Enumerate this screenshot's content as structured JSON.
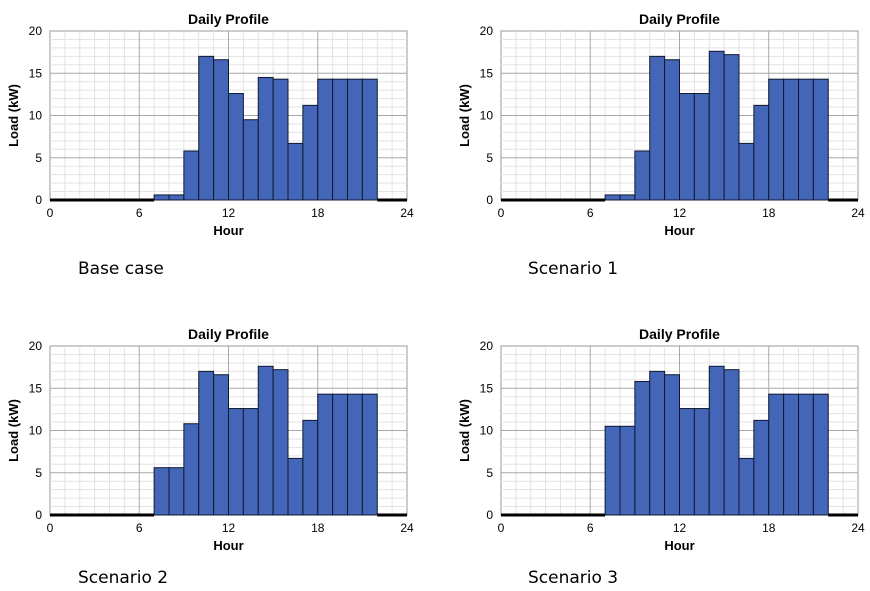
{
  "chart_data": [
    {
      "type": "bar",
      "title": "Daily Profile",
      "xlabel": "Hour",
      "ylabel": "Load (kW)",
      "xlim": [
        0,
        24
      ],
      "ylim": [
        0,
        20
      ],
      "xticks": [
        "0",
        "6",
        "12",
        "18",
        "24"
      ],
      "yticks": [
        "0",
        "5",
        "10",
        "15",
        "20"
      ],
      "grid": true,
      "caption": "Base case",
      "x": [
        0,
        1,
        2,
        3,
        4,
        5,
        6,
        7,
        8,
        9,
        10,
        11,
        12,
        13,
        14,
        15,
        16,
        17,
        18,
        19,
        20,
        21,
        22,
        23
      ],
      "values": [
        0,
        0,
        0,
        0,
        0,
        0,
        0,
        0.6,
        0.6,
        5.8,
        17,
        16.6,
        12.6,
        9.5,
        14.5,
        14.3,
        6.7,
        11.2,
        14.3,
        14.3,
        14.3,
        14.3,
        0,
        0
      ]
    },
    {
      "type": "bar",
      "title": "Daily Profile",
      "xlabel": "Hour",
      "ylabel": "Load (kW)",
      "xlim": [
        0,
        24
      ],
      "ylim": [
        0,
        20
      ],
      "xticks": [
        "0",
        "6",
        "12",
        "18",
        "24"
      ],
      "yticks": [
        "0",
        "5",
        "10",
        "15",
        "20"
      ],
      "grid": true,
      "caption": "Scenario 1",
      "x": [
        0,
        1,
        2,
        3,
        4,
        5,
        6,
        7,
        8,
        9,
        10,
        11,
        12,
        13,
        14,
        15,
        16,
        17,
        18,
        19,
        20,
        21,
        22,
        23
      ],
      "values": [
        0,
        0,
        0,
        0,
        0,
        0,
        0,
        0.6,
        0.6,
        5.8,
        17,
        16.6,
        12.6,
        12.6,
        17.6,
        17.2,
        6.7,
        11.2,
        14.3,
        14.3,
        14.3,
        14.3,
        0,
        0
      ]
    },
    {
      "type": "bar",
      "title": "Daily Profile",
      "xlabel": "Hour",
      "ylabel": "Load (kW)",
      "xlim": [
        0,
        24
      ],
      "ylim": [
        0,
        20
      ],
      "xticks": [
        "0",
        "6",
        "12",
        "18",
        "24"
      ],
      "yticks": [
        "0",
        "5",
        "10",
        "15",
        "20"
      ],
      "grid": true,
      "caption": "Scenario 2",
      "x": [
        0,
        1,
        2,
        3,
        4,
        5,
        6,
        7,
        8,
        9,
        10,
        11,
        12,
        13,
        14,
        15,
        16,
        17,
        18,
        19,
        20,
        21,
        22,
        23
      ],
      "values": [
        0,
        0,
        0,
        0,
        0,
        0,
        0,
        5.6,
        5.6,
        10.8,
        17,
        16.6,
        12.6,
        12.6,
        17.6,
        17.2,
        6.7,
        11.2,
        14.3,
        14.3,
        14.3,
        14.3,
        0,
        0
      ]
    },
    {
      "type": "bar",
      "title": "Daily Profile",
      "xlabel": "Hour",
      "ylabel": "Load (kW)",
      "xlim": [
        0,
        24
      ],
      "ylim": [
        0,
        20
      ],
      "xticks": [
        "0",
        "6",
        "12",
        "18",
        "24"
      ],
      "yticks": [
        "0",
        "5",
        "10",
        "15",
        "20"
      ],
      "grid": true,
      "caption": "Scenario 3",
      "x": [
        0,
        1,
        2,
        3,
        4,
        5,
        6,
        7,
        8,
        9,
        10,
        11,
        12,
        13,
        14,
        15,
        16,
        17,
        18,
        19,
        20,
        21,
        22,
        23
      ],
      "values": [
        0,
        0,
        0,
        0,
        0,
        0,
        0,
        10.5,
        10.5,
        15.8,
        17,
        16.6,
        12.6,
        12.6,
        17.6,
        17.2,
        6.7,
        11.2,
        14.3,
        14.3,
        14.3,
        14.3,
        0,
        0
      ]
    }
  ]
}
